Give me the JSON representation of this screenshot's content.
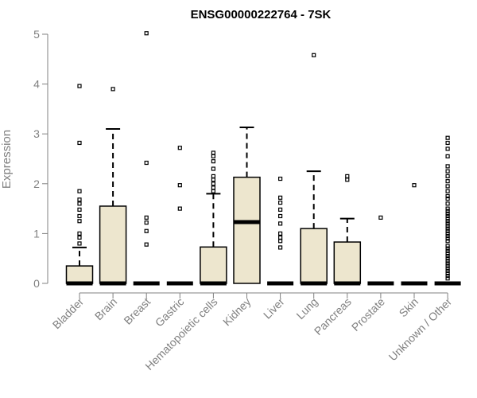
{
  "chart_data": {
    "type": "box",
    "title": "ENSG00000222764 - 7SK",
    "ylabel": "Expression",
    "xlabel": "",
    "ylim": [
      0,
      5
    ],
    "yticks": [
      0,
      1,
      2,
      3,
      4,
      5
    ],
    "grid": false,
    "legend": "none",
    "box_fill": "#EDE6CE",
    "box_stroke": "#000000",
    "axis_color": "#808080",
    "categories": [
      "Bladder",
      "Brain",
      "Breast",
      "Gastric",
      "Hematopoietic cells",
      "Kidney",
      "Liver",
      "Lung",
      "Pancreas",
      "Prostate",
      "Skin",
      "Unknown / Other"
    ],
    "boxes": [
      {
        "q1": 0,
        "median": 0,
        "q3": 0.35,
        "whisker_low": 0,
        "whisker_high": 0.72,
        "outliers": [
          0.8,
          0.92,
          1.0,
          1.25,
          1.35,
          1.48,
          1.6,
          1.68,
          1.85,
          2.82,
          3.96
        ]
      },
      {
        "q1": 0,
        "median": 0,
        "q3": 1.55,
        "whisker_low": 0,
        "whisker_high": 3.1,
        "outliers": [
          3.9
        ]
      },
      {
        "q1": 0,
        "median": 0,
        "q3": 0,
        "whisker_low": 0,
        "whisker_high": 0,
        "outliers": [
          0.78,
          1.05,
          1.22,
          1.32,
          2.42,
          5.02
        ]
      },
      {
        "q1": 0,
        "median": 0,
        "q3": 0,
        "whisker_low": 0,
        "whisker_high": 0,
        "outliers": [
          1.5,
          1.97,
          2.72
        ]
      },
      {
        "q1": 0,
        "median": 0,
        "q3": 0.73,
        "whisker_low": 0,
        "whisker_high": 1.8,
        "outliers": [
          1.85,
          1.92,
          2.0,
          2.08,
          2.15,
          2.3,
          2.45,
          2.55,
          2.62
        ]
      },
      {
        "q1": 0,
        "median": 1.23,
        "q3": 2.13,
        "whisker_low": 0,
        "whisker_high": 3.13,
        "outliers": []
      },
      {
        "q1": 0,
        "median": 0,
        "q3": 0,
        "whisker_low": 0,
        "whisker_high": 0,
        "outliers": [
          0.72,
          0.85,
          0.92,
          1.0,
          1.2,
          1.35,
          1.48,
          1.62,
          1.72,
          2.1
        ]
      },
      {
        "q1": 0,
        "median": 0,
        "q3": 1.1,
        "whisker_low": 0,
        "whisker_high": 2.25,
        "outliers": [
          4.58
        ]
      },
      {
        "q1": 0,
        "median": 0,
        "q3": 0.83,
        "whisker_low": 0,
        "whisker_high": 1.3,
        "outliers": [
          2.08,
          2.15
        ]
      },
      {
        "q1": 0,
        "median": 0,
        "q3": 0,
        "whisker_low": 0,
        "whisker_high": 0,
        "outliers": [
          1.32
        ]
      },
      {
        "q1": 0,
        "median": 0,
        "q3": 0,
        "whisker_low": 0,
        "whisker_high": 0,
        "outliers": [
          1.97
        ]
      },
      {
        "q1": 0,
        "median": 0,
        "q3": 0,
        "whisker_low": 0,
        "whisker_high": 0,
        "outliers": [
          0.1,
          0.15,
          0.2,
          0.25,
          0.3,
          0.35,
          0.4,
          0.45,
          0.5,
          0.55,
          0.6,
          0.65,
          0.7,
          0.75,
          0.85,
          0.9,
          0.95,
          1.0,
          1.05,
          1.1,
          1.15,
          1.2,
          1.25,
          1.3,
          1.35,
          1.4,
          1.45,
          1.5,
          1.6,
          1.7,
          1.75,
          1.85,
          1.95,
          2.05,
          2.15,
          2.25,
          2.35,
          2.55,
          2.7,
          2.82,
          2.92
        ]
      }
    ]
  }
}
